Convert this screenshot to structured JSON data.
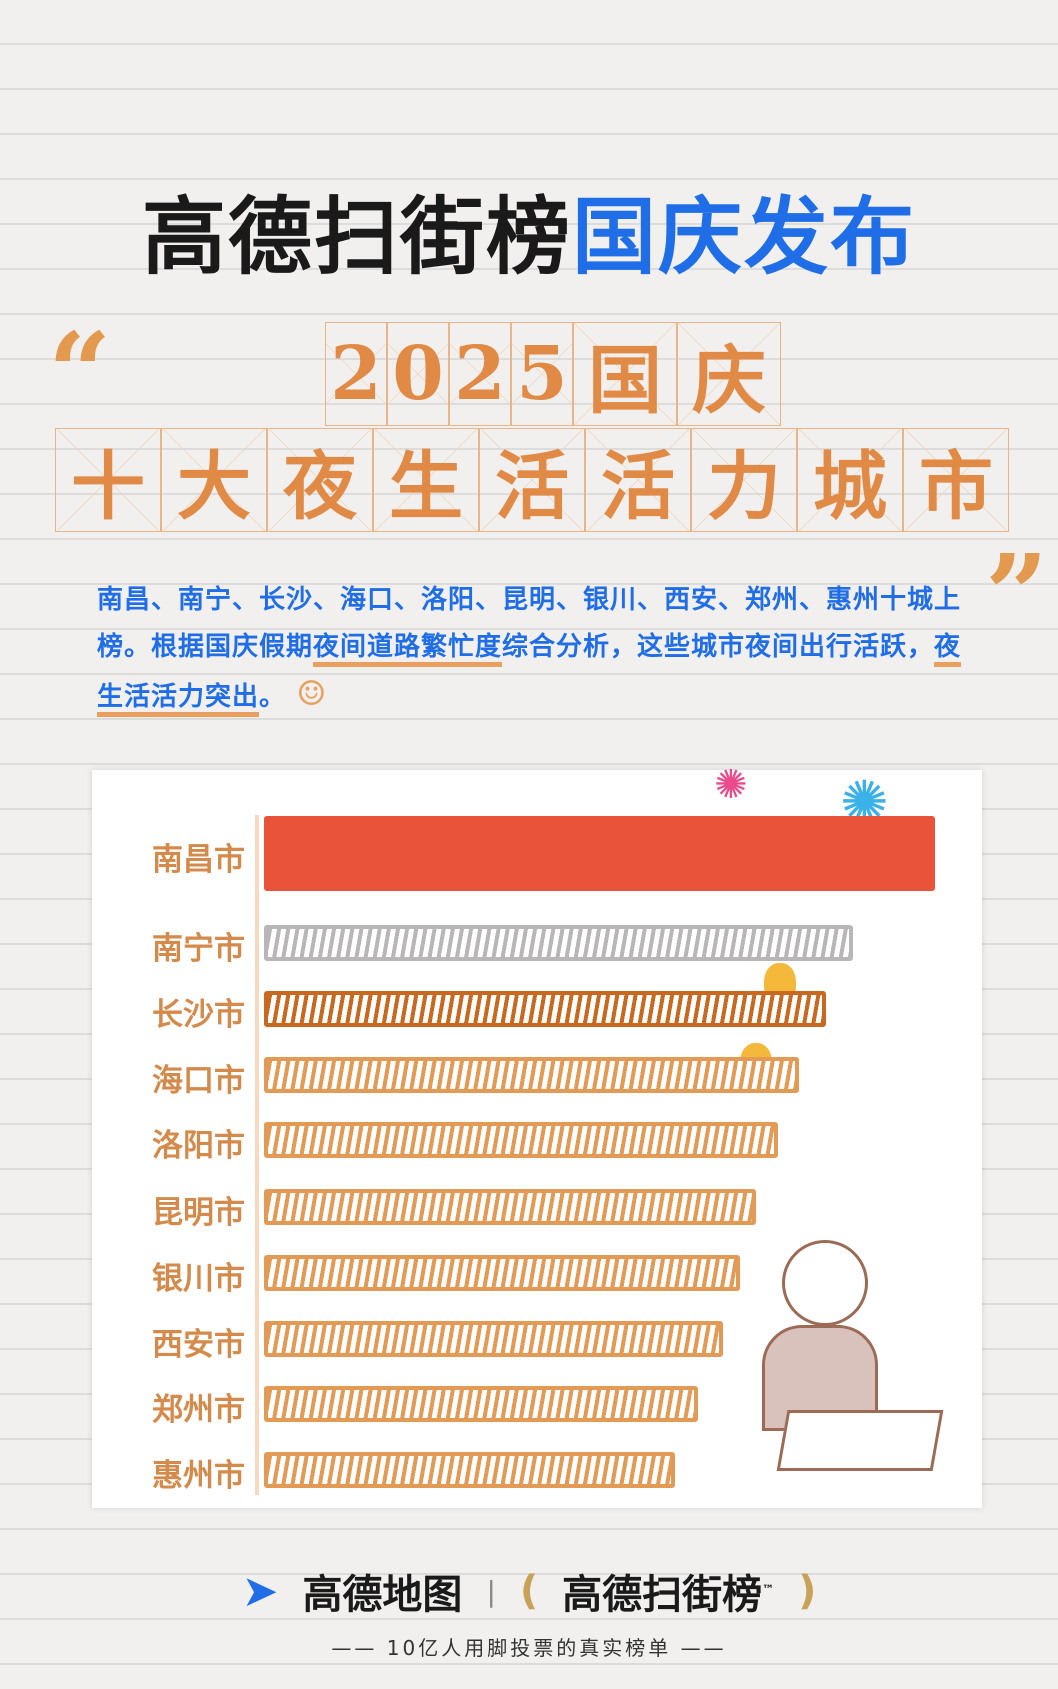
{
  "header": {
    "title_black": "高德扫街榜",
    "title_blue": "国庆发布"
  },
  "headline": {
    "line1": [
      "2",
      "0",
      "2",
      "5",
      "国",
      "庆"
    ],
    "line2": [
      "十",
      "大",
      "夜",
      "生",
      "活",
      "活",
      "力",
      "城",
      "市"
    ],
    "open_quote": "“",
    "close_quote": "”"
  },
  "description": {
    "part1": "南昌、南宁、长沙、海口、洛阳、昆明、银川、西安、郑州、惠州十城上榜。根据国庆假期",
    "highlight1": "夜间道路繁忙度",
    "part2": "综合分析，这些城市夜间出行活跃，",
    "highlight2": "夜生活活力突出",
    "part3": "。"
  },
  "chart_data": {
    "type": "bar",
    "orientation": "horizontal",
    "title": "",
    "xlabel": "",
    "ylabel": "",
    "axis_ticks": "none",
    "categories": [
      "南昌市",
      "南宁市",
      "长沙市",
      "海口市",
      "洛阳市",
      "昆明市",
      "银川市",
      "西安市",
      "郑州市",
      "惠州市"
    ],
    "values": [
      100,
      87.8,
      83.8,
      79.8,
      76.6,
      73.3,
      70.9,
      68.4,
      64.7,
      61.2
    ],
    "value_note_relative": true,
    "colors": [
      "#e8533a",
      "#b9b6b8",
      "#c8691f",
      "#e39a55",
      "#e39a55",
      "#e39a55",
      "#e39a55",
      "#e39a55",
      "#e39a55",
      "#e39a55"
    ]
  },
  "footer": {
    "brand1": "高德地图",
    "separator": "|",
    "brand2": "高德扫街榜",
    "tm": "™",
    "tagline": "10亿人用脚投票的真实榜单"
  }
}
